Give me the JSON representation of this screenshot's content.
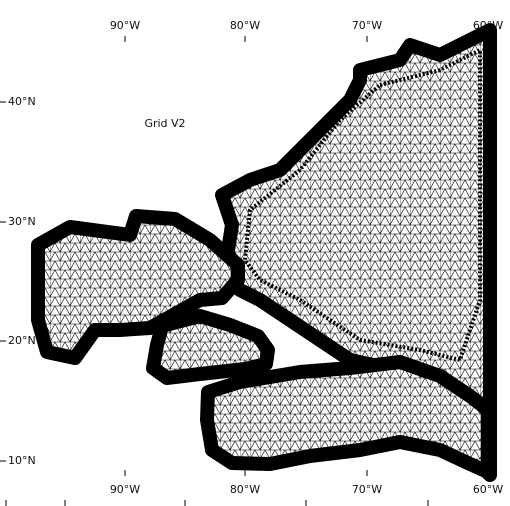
{
  "title": "Grid V2",
  "top_labels": [
    "90°W",
    "80°W",
    "70°W",
    "60°W"
  ],
  "bottom_labels": [
    "90°W",
    "80°W",
    "70°W",
    "60°W"
  ],
  "left_labels": [
    "40°N",
    "30°N",
    "20°N",
    "10°N"
  ]
}
